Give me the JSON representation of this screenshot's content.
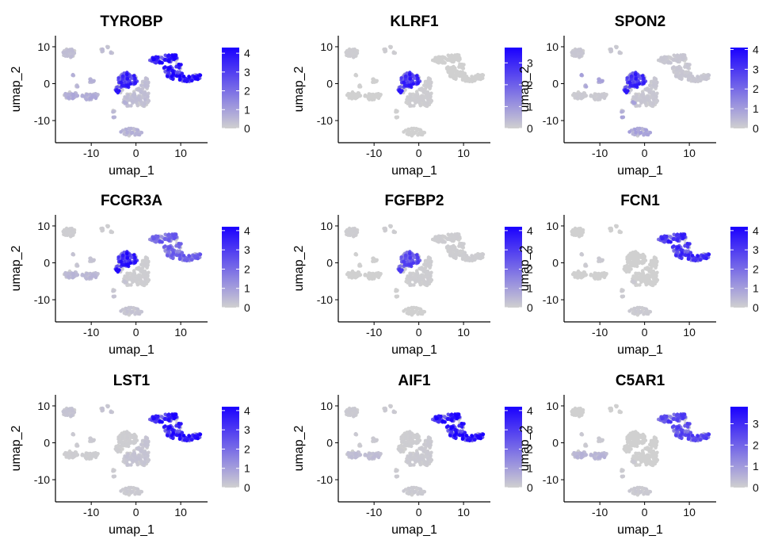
{
  "chart_data": [
    {
      "type": "scatter",
      "title": "TYROBP",
      "xlabel": "umap_1",
      "ylabel": "umap_2",
      "xticks": [
        -10,
        0,
        10
      ],
      "yticks": [
        -10,
        0,
        10
      ],
      "xlim": [
        -18,
        16
      ],
      "ylim": [
        -16,
        13
      ],
      "legend": {
        "type": "colorbar",
        "position": "right",
        "ticks": [
          0,
          1,
          2,
          3,
          4
        ],
        "max": 4.3
      },
      "expression": {
        "nk": 2.8,
        "mono": 3.2,
        "t": 0.3,
        "b": 0.6,
        "small": 0.5
      },
      "color_low": "#d0d0d0",
      "color_high": "#1a00ff"
    },
    {
      "type": "scatter",
      "title": "KLRF1",
      "xlabel": "umap_1",
      "ylabel": "umap_2",
      "xticks": [
        -10,
        0,
        10
      ],
      "yticks": [
        -10,
        0,
        10
      ],
      "xlim": [
        -18,
        16
      ],
      "ylim": [
        -16,
        13
      ],
      "legend": {
        "type": "colorbar",
        "position": "right",
        "ticks": [
          0,
          1,
          2,
          3
        ],
        "max": 3.7
      },
      "expression": {
        "nk": 2.4,
        "mono": 0.0,
        "t": 0.05,
        "b": 0.0,
        "small": 0.0
      },
      "color_low": "#d0d0d0",
      "color_high": "#1a00ff"
    },
    {
      "type": "scatter",
      "title": "SPON2",
      "xlabel": "umap_1",
      "ylabel": "umap_2",
      "xticks": [
        -10,
        0,
        10
      ],
      "yticks": [
        -10,
        0,
        10
      ],
      "xlim": [
        -18,
        16
      ],
      "ylim": [
        -16,
        13
      ],
      "legend": {
        "type": "colorbar",
        "position": "right",
        "ticks": [
          0,
          1,
          2,
          3,
          4
        ],
        "max": 4.1
      },
      "expression": {
        "nk": 2.6,
        "mono": 0.15,
        "t": 0.15,
        "b": 0.1,
        "small": 0.7
      },
      "color_low": "#d0d0d0",
      "color_high": "#1a00ff"
    },
    {
      "type": "scatter",
      "title": "FCGR3A",
      "xlabel": "umap_1",
      "ylabel": "umap_2",
      "xticks": [
        -10,
        0,
        10
      ],
      "yticks": [
        -10,
        0,
        10
      ],
      "xlim": [
        -18,
        16
      ],
      "ylim": [
        -16,
        13
      ],
      "legend": {
        "type": "colorbar",
        "position": "right",
        "ticks": [
          0,
          1,
          2,
          3,
          4
        ],
        "max": 4.2
      },
      "expression": {
        "nk": 2.9,
        "mono": 1.8,
        "t": 0.05,
        "b": 0.4,
        "small": 0.2
      },
      "color_low": "#d0d0d0",
      "color_high": "#1a00ff"
    },
    {
      "type": "scatter",
      "title": "FGFBP2",
      "xlabel": "umap_1",
      "ylabel": "umap_2",
      "xticks": [
        -10,
        0,
        10
      ],
      "yticks": [
        -10,
        0,
        10
      ],
      "xlim": [
        -18,
        16
      ],
      "ylim": [
        -16,
        13
      ],
      "legend": {
        "type": "colorbar",
        "position": "right",
        "ticks": [
          0,
          1,
          2,
          3,
          4
        ],
        "max": 4.2
      },
      "expression": {
        "nk": 2.2,
        "mono": 0.05,
        "t": 0.05,
        "b": 0.0,
        "small": 0.0
      },
      "color_low": "#d0d0d0",
      "color_high": "#1a00ff"
    },
    {
      "type": "scatter",
      "title": "FCN1",
      "xlabel": "umap_1",
      "ylabel": "umap_2",
      "xticks": [
        -10,
        0,
        10
      ],
      "yticks": [
        -10,
        0,
        10
      ],
      "xlim": [
        -18,
        16
      ],
      "ylim": [
        -16,
        13
      ],
      "legend": {
        "type": "colorbar",
        "position": "right",
        "ticks": [
          0,
          1,
          2,
          3,
          4
        ],
        "max": 4.2
      },
      "expression": {
        "nk": 0.0,
        "mono": 2.6,
        "t": 0.0,
        "b": 0.0,
        "small": 0.1
      },
      "color_low": "#d0d0d0",
      "color_high": "#1a00ff"
    },
    {
      "type": "scatter",
      "title": "LST1",
      "xlabel": "umap_1",
      "ylabel": "umap_2",
      "xticks": [
        -10,
        0,
        10
      ],
      "yticks": [
        -10,
        0,
        10
      ],
      "xlim": [
        -18,
        16
      ],
      "ylim": [
        -16,
        13
      ],
      "legend": {
        "type": "colorbar",
        "position": "right",
        "ticks": [
          0,
          1,
          2,
          3,
          4
        ],
        "max": 4.2
      },
      "expression": {
        "nk": 0.05,
        "mono": 3.0,
        "t": 0.2,
        "b": 0.05,
        "small": 0.1
      },
      "color_low": "#d0d0d0",
      "color_high": "#1a00ff"
    },
    {
      "type": "scatter",
      "title": "AIF1",
      "xlabel": "umap_1",
      "ylabel": "umap_2",
      "xticks": [
        -10,
        0,
        10
      ],
      "yticks": [
        -10,
        0,
        10
      ],
      "xlim": [
        -18,
        16
      ],
      "ylim": [
        -16,
        13
      ],
      "legend": {
        "type": "colorbar",
        "position": "right",
        "ticks": [
          0,
          1,
          2,
          3,
          4
        ],
        "max": 4.2
      },
      "expression": {
        "nk": 0.05,
        "mono": 3.1,
        "t": 0.1,
        "b": 0.3,
        "small": 0.1
      },
      "color_low": "#d0d0d0",
      "color_high": "#1a00ff"
    },
    {
      "type": "scatter",
      "title": "C5AR1",
      "xlabel": "umap_1",
      "ylabel": "umap_2",
      "xticks": [
        -10,
        0,
        10
      ],
      "yticks": [
        -10,
        0,
        10
      ],
      "xlim": [
        -18,
        16
      ],
      "ylim": [
        -16,
        13
      ],
      "legend": {
        "type": "colorbar",
        "position": "right",
        "ticks": [
          0,
          1,
          2,
          3
        ],
        "max": 3.8
      },
      "expression": {
        "nk": 0.0,
        "mono": 2.0,
        "t": 0.0,
        "b": 0.4,
        "small": 0.1
      },
      "color_low": "#d0d0d0",
      "color_high": "#1a00ff"
    }
  ]
}
